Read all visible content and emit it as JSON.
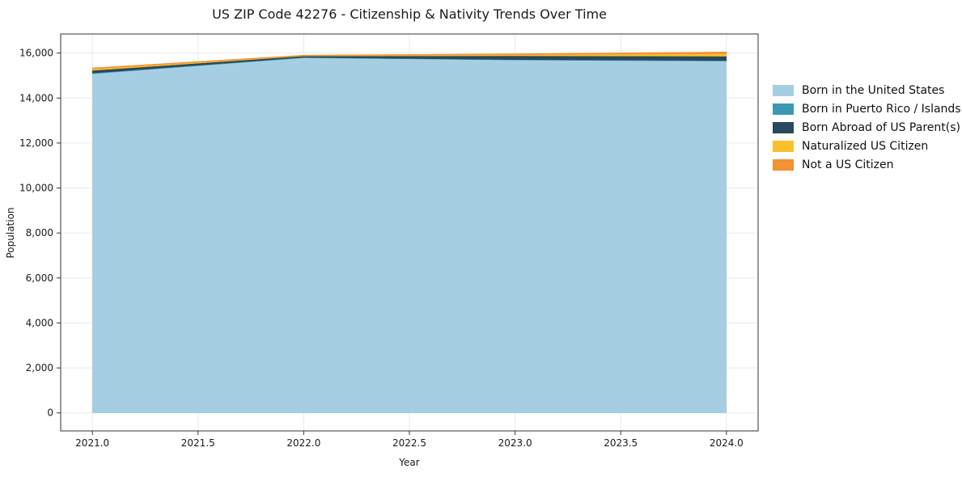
{
  "title": "US ZIP Code 42276 - Citizenship & Nativity Trends Over Time",
  "axes": {
    "xlabel": "Year",
    "ylabel": "Population"
  },
  "chart_data": {
    "type": "area",
    "stacked": true,
    "title": "US ZIP Code 42276 - Citizenship & Nativity Trends Over Time",
    "xlabel": "Year",
    "ylabel": "Population",
    "x": [
      2021,
      2022,
      2023,
      2024
    ],
    "series": [
      {
        "name": "Born in the United States",
        "color": "#a6cee3",
        "values": [
          15080,
          15790,
          15690,
          15640
        ]
      },
      {
        "name": "Born in Puerto Rico / Islands",
        "color": "#3d99b3",
        "values": [
          30,
          20,
          20,
          30
        ]
      },
      {
        "name": "Born Abroad of US Parent(s)",
        "color": "#29495c",
        "values": [
          120,
          60,
          170,
          190
        ]
      },
      {
        "name": "Naturalized US Citizen",
        "color": "#fcc02e",
        "values": [
          60,
          20,
          50,
          110
        ]
      },
      {
        "name": "Not a US Citizen",
        "color": "#f29230",
        "values": [
          50,
          20,
          40,
          80
        ]
      }
    ],
    "totals": [
      15340,
      15910,
      15970,
      16050
    ],
    "xlim": [
      2020.85,
      2024.15
    ],
    "ylim": [
      -800,
      16850
    ],
    "xticks": {
      "values": [
        2021.0,
        2021.5,
        2022.0,
        2022.5,
        2023.0,
        2023.5,
        2024.0
      ],
      "labels": [
        "2021.0",
        "2021.5",
        "2022.0",
        "2022.5",
        "2023.0",
        "2023.5",
        "2024.0"
      ]
    },
    "yticks": {
      "values": [
        0,
        2000,
        4000,
        6000,
        8000,
        10000,
        12000,
        14000,
        16000
      ],
      "labels": [
        "0",
        "2,000",
        "4,000",
        "6,000",
        "8,000",
        "10,000",
        "12,000",
        "14,000",
        "16,000"
      ]
    },
    "grid": true,
    "legend_position": "right-outside",
    "colors": {
      "grid": "#e9e9e9",
      "spine": "#333333",
      "background": "#ffffff"
    }
  }
}
